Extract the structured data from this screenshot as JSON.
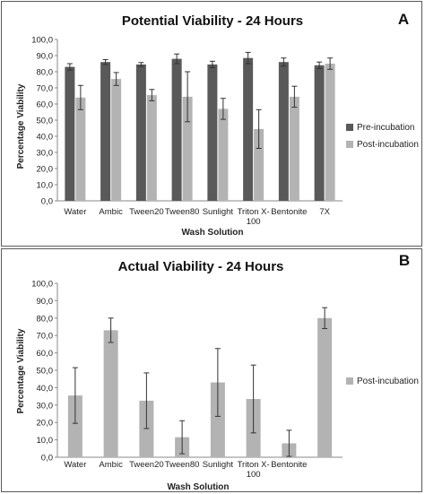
{
  "chart_data": [
    {
      "type": "bar",
      "panel_letter": "A",
      "title": "Potential Viability - 24 Hours",
      "xlabel": "Wash Solution",
      "ylabel": "Percentage Viability",
      "ylim": [
        0,
        100
      ],
      "yticks": [
        "0,0",
        "10,0",
        "20,0",
        "30,0",
        "40,0",
        "50,0",
        "60,0",
        "70,0",
        "80,0",
        "90,0",
        "100,0"
      ],
      "categories": [
        "Water",
        "Ambic",
        "Tween20",
        "Tween80",
        "Sunlight",
        "Triton X-100",
        "Bentonite",
        "7X"
      ],
      "category_labels": [
        [
          "Water"
        ],
        [
          "Ambic"
        ],
        [
          "Tween20"
        ],
        [
          "Tween80"
        ],
        [
          "Sunlight"
        ],
        [
          "Triton X-",
          "100"
        ],
        [
          "Bentonite"
        ],
        [
          "7X"
        ]
      ],
      "legend_position": "right",
      "series": [
        {
          "name": "Pre-incubation",
          "color": "#595959",
          "values": [
            83,
            86,
            84.5,
            88,
            84.5,
            88.5,
            86,
            84
          ],
          "errors": [
            2,
            1.5,
            1.2,
            3,
            2,
            3.5,
            2.5,
            2
          ]
        },
        {
          "name": "Post-incubation",
          "color": "#b3b3b3",
          "values": [
            64,
            75.5,
            65.5,
            64.5,
            57,
            44.5,
            64.5,
            85
          ],
          "errors": [
            7.5,
            4,
            3.5,
            15.5,
            6.5,
            12,
            6.5,
            3.5
          ]
        }
      ]
    },
    {
      "type": "bar",
      "panel_letter": "B",
      "title": "Actual Viability - 24 Hours",
      "xlabel": "Wash Solution",
      "ylabel": "Percentage Viability",
      "ylim": [
        0,
        100
      ],
      "yticks": [
        "0,0",
        "10,0",
        "20,0",
        "30,0",
        "40,0",
        "50,0",
        "60,0",
        "70,0",
        "80,0",
        "90,0",
        "100,0"
      ],
      "categories": [
        "Water",
        "Ambic",
        "Tween20",
        "Tween80",
        "Sunlight",
        "Triton X-100",
        "Bentonite",
        ""
      ],
      "category_labels": [
        [
          "Water"
        ],
        [
          "Ambic"
        ],
        [
          "Tween20"
        ],
        [
          "Tween80"
        ],
        [
          "Sunlight"
        ],
        [
          "Triton X-",
          "100"
        ],
        [
          "Bentonite"
        ],
        [
          ""
        ]
      ],
      "legend_position": "right",
      "series": [
        {
          "name": "Post-incubation",
          "color": "#b3b3b3",
          "values": [
            35.5,
            73,
            32.5,
            11.5,
            43,
            33.5,
            8,
            80
          ],
          "errors": [
            16,
            7,
            16,
            9.5,
            19.5,
            19.5,
            7.5,
            6
          ]
        }
      ]
    }
  ]
}
